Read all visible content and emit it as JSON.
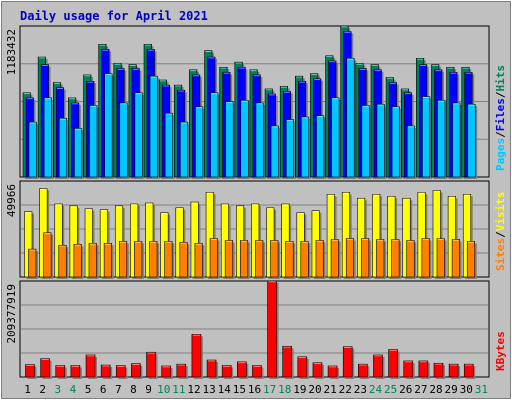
{
  "chart_data": {
    "type": "bar",
    "title": "Daily usage for April 2021",
    "categories": [
      "1",
      "2",
      "3",
      "4",
      "5",
      "6",
      "7",
      "8",
      "9",
      "10",
      "11",
      "12",
      "13",
      "14",
      "15",
      "16",
      "17",
      "18",
      "19",
      "20",
      "21",
      "22",
      "23",
      "24",
      "25",
      "26",
      "27",
      "28",
      "29",
      "30",
      "31"
    ],
    "weekend_days": [
      "3",
      "4",
      "10",
      "11",
      "17",
      "18",
      "24",
      "25",
      "31"
    ],
    "colors": {
      "background": "#c0c0c0",
      "title": "#0000cc",
      "hits": "#00805c",
      "files": "#0000ff",
      "pages": "#00c8ff",
      "visits": "#ffff00",
      "sites": "#ff8000",
      "kbytes": "#ff0000",
      "weekday_label": "#000000",
      "weekend_label": "#00805c"
    },
    "panels": [
      {
        "id": "hits-files-pages",
        "ymax_label": "1183432",
        "ylim": [
          0,
          1183432
        ],
        "legend": [
          "Pages",
          "Files",
          "Hits"
        ],
        "series": [
          {
            "name": "Hits",
            "key": "hits",
            "values": [
              660000,
              940000,
              740000,
              620000,
              800000,
              1040000,
              890000,
              880000,
              1040000,
              760000,
              720000,
              840000,
              990000,
              860000,
              900000,
              840000,
              690000,
              710000,
              790000,
              810000,
              950000,
              1183432,
              890000,
              880000,
              780000,
              690000,
              930000,
              880000,
              860000,
              860000,
              null
            ]
          },
          {
            "name": "Files",
            "key": "files",
            "values": [
              620000,
              880000,
              700000,
              580000,
              750000,
              1000000,
              850000,
              850000,
              1000000,
              720000,
              680000,
              800000,
              940000,
              820000,
              860000,
              800000,
              650000,
              670000,
              750000,
              770000,
              910000,
              1140000,
              850000,
              840000,
              740000,
              660000,
              880000,
              840000,
              820000,
              820000,
              null
            ]
          },
          {
            "name": "Pages",
            "key": "pages",
            "values": [
              430000,
              620000,
              460000,
              380000,
              560000,
              810000,
              580000,
              660000,
              790000,
              500000,
              430000,
              550000,
              660000,
              590000,
              600000,
              580000,
              400000,
              450000,
              470000,
              480000,
              620000,
              930000,
              560000,
              570000,
              550000,
              400000,
              630000,
              600000,
              580000,
              570000,
              null
            ]
          }
        ]
      },
      {
        "id": "visits-sites",
        "ymax_label": "49966",
        "ylim": [
          0,
          49966
        ],
        "legend": [
          "Sites",
          "/",
          "Visits"
        ],
        "series": [
          {
            "name": "Visits",
            "key": "visits",
            "values": [
              34000,
              46000,
              38000,
              37000,
              35500,
              35000,
              37000,
              38000,
              38500,
              33500,
              36000,
              39000,
              44000,
              38000,
              37000,
              38000,
              36000,
              38000,
              33500,
              34500,
              43000,
              44000,
              41000,
              43000,
              42000,
              41000,
              44000,
              45000,
              42000,
              43000,
              null
            ]
          },
          {
            "name": "Sites",
            "key": "sites",
            "values": [
              14500,
              23000,
              16500,
              17000,
              17500,
              17500,
              18500,
              18500,
              18500,
              18500,
              18000,
              17500,
              20000,
              19000,
              19000,
              19000,
              19000,
              18500,
              18500,
              19000,
              19500,
              20000,
              20000,
              19500,
              19500,
              19000,
              20000,
              20000,
              19500,
              18500,
              null
            ]
          }
        ]
      },
      {
        "id": "kbytes",
        "ymax_label": "209377919",
        "ylim": [
          0,
          209377919
        ],
        "legend": [
          "KBytes"
        ],
        "series": [
          {
            "name": "KBytes",
            "key": "kbytes",
            "values": [
              27000000,
              40000000,
              25000000,
              25000000,
              48000000,
              26000000,
              25000000,
              29000000,
              54000000,
              24000000,
              28000000,
              93000000,
              37000000,
              25000000,
              33000000,
              25000000,
              209377919,
              67000000,
              44000000,
              31000000,
              24000000,
              66000000,
              28000000,
              48000000,
              60000000,
              35000000,
              35000000,
              30000000,
              28000000,
              28000000,
              null
            ]
          }
        ]
      }
    ]
  }
}
